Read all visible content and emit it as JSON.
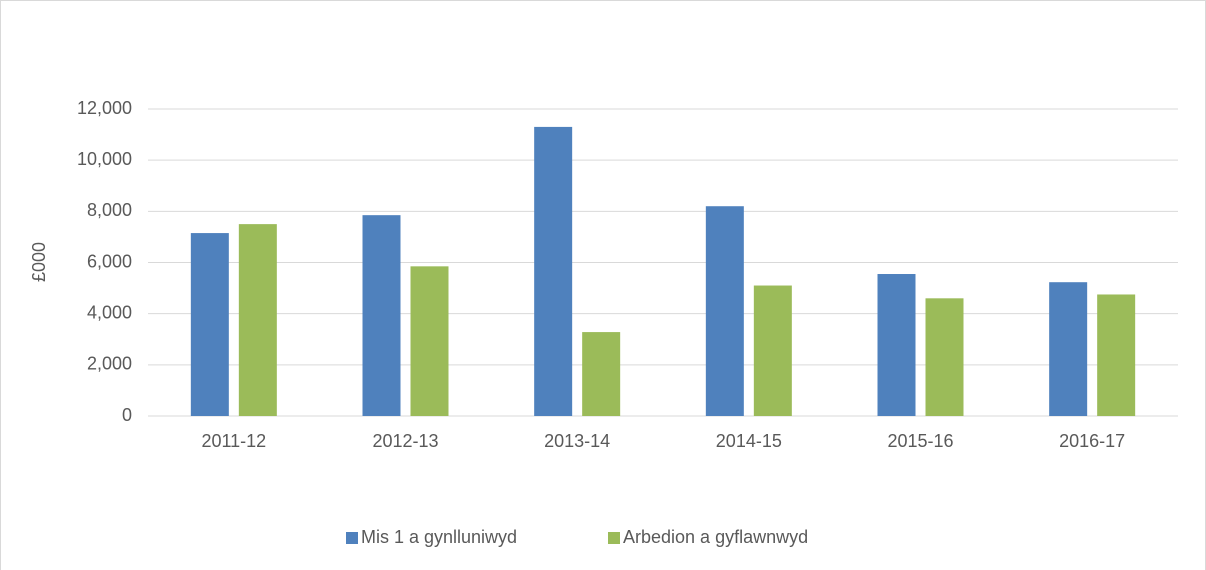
{
  "chart_data": {
    "type": "bar",
    "y_label": "£000",
    "categories": [
      "2011-12",
      "2012-13",
      "2013-14",
      "2014-15",
      "2015-16",
      "2016-17"
    ],
    "series": [
      {
        "name": "Mis 1 a gynlluniwyd",
        "color": "#4f81bd",
        "values": [
          7150,
          7850,
          11300,
          8200,
          5550,
          5230
        ]
      },
      {
        "name": "Arbedion a gyflawnwyd",
        "color": "#9bbb59",
        "values": [
          7500,
          5850,
          3280,
          5100,
          4600,
          4750
        ]
      }
    ],
    "ylim": [
      0,
      12000
    ],
    "yticks": [
      0,
      {
        "value": 2000,
        "label": "2,000"
      },
      {
        "value": 4000,
        "label": "4,000"
      },
      {
        "value": 6000,
        "label": "6,000"
      },
      {
        "value": 8000,
        "label": "8,000"
      },
      {
        "value": 10000,
        "label": "10,000"
      },
      {
        "value": 12000,
        "label": "12,000"
      }
    ],
    "grid": true,
    "legend": "bottom"
  }
}
